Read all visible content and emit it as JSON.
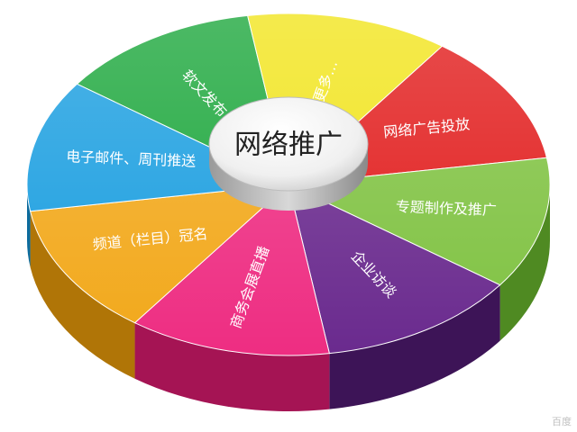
{
  "diagram": {
    "center_label": "网络推广",
    "segments": [
      {
        "name": "seg-soft-article",
        "label": "软文发布",
        "color": "#1aa63a",
        "side": "#0d6e24"
      },
      {
        "name": "seg-more",
        "label": "更多…",
        "color": "#f1e41a",
        "side": "#b3a70d"
      },
      {
        "name": "seg-web-ads",
        "label": "网络广告投放",
        "color": "#e11a1a",
        "side": "#9c0b0b"
      },
      {
        "name": "seg-special-topic",
        "label": "专题制作及推广",
        "color": "#7fc241",
        "side": "#4f8a22"
      },
      {
        "name": "seg-enterprise-interview",
        "label": "企业访谈",
        "color": "#6a2a8e",
        "side": "#3d1457"
      },
      {
        "name": "seg-expo-live",
        "label": "商务会展直播",
        "color": "#ee2d82",
        "side": "#a51454"
      },
      {
        "name": "seg-channel-sponsor",
        "label": "频道（栏目）冠名",
        "color": "#f2a81a",
        "side": "#b07507"
      },
      {
        "name": "seg-email-weekly",
        "label": "电子邮件、周刊推送",
        "color": "#1a9ee0",
        "side": "#0c6b9d"
      }
    ]
  },
  "watermark": "百度"
}
